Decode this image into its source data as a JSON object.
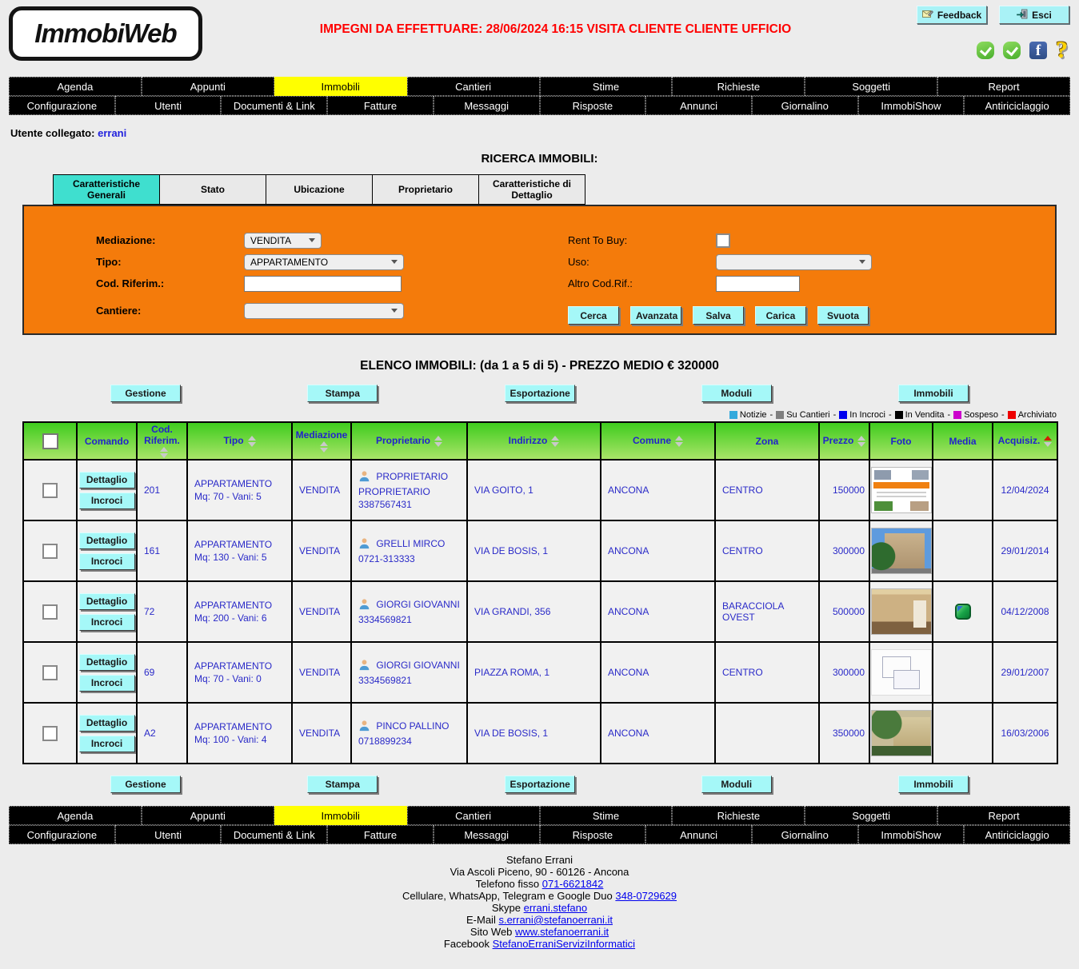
{
  "header": {
    "logo": "ImmobiWeb",
    "alert": "IMPEGNI DA EFFETTUARE: 28/06/2024 16:15 VISITA CLIENTE CLIENTE UFFICIO",
    "feedback_label": "Feedback",
    "esci_label": "Esci",
    "alert_color": "#FF0000",
    "button_color": "#A9F2F6"
  },
  "nav": {
    "row1": [
      "Agenda",
      "Appunti",
      "Immobili",
      "Cantieri",
      "Stime",
      "Richieste",
      "Soggetti",
      "Report"
    ],
    "row2": [
      "Configurazione",
      "Utenti",
      "Documenti & Link",
      "Fatture",
      "Messaggi",
      "Risposte",
      "Annunci",
      "Giornalino",
      "ImmobiShow",
      "Antiriciclaggio"
    ],
    "active": "Immobili",
    "active_color": "#FFFF00"
  },
  "user_bar": {
    "label": "Utente collegato:",
    "user": "errani"
  },
  "search": {
    "title": "RICERCA IMMOBILI:",
    "tabs": [
      "Caratteristiche Generali",
      "Stato",
      "Ubicazione",
      "Proprietario",
      "Caratteristiche di Dettaglio"
    ],
    "active_tab": "Caratteristiche Generali",
    "active_tab_color": "#3FDFCF",
    "panel_color": "#F47B0B",
    "fields_left": [
      {
        "label": "Mediazione:",
        "type": "select",
        "value": "VENDITA"
      },
      {
        "label": "Tipo:",
        "type": "select",
        "value": "APPARTAMENTO"
      },
      {
        "label": "Cod. Riferim.:",
        "type": "text",
        "value": ""
      },
      {
        "label": "Cantiere:",
        "type": "select",
        "value": ""
      }
    ],
    "fields_right": [
      {
        "label": "Rent To Buy:",
        "type": "checkbox",
        "checked": false
      },
      {
        "label": "Uso:",
        "type": "select",
        "value": ""
      },
      {
        "label": "Altro Cod.Rif.:",
        "type": "text",
        "value": ""
      }
    ],
    "buttons": [
      "Cerca",
      "Avanzata",
      "Salva",
      "Carica",
      "Svuota"
    ]
  },
  "list": {
    "title": "ELENCO IMMOBILI: (da 1 a 5 di 5)  -  PREZZO MEDIO € 320000",
    "action_buttons": [
      "Gestione",
      "Stampa",
      "Esportazione",
      "Moduli",
      "Immobili"
    ],
    "legend": [
      {
        "label": "Notizie",
        "color": "#33A9DC"
      },
      {
        "label": "Su Cantieri",
        "color": "#7F7F7F"
      },
      {
        "label": "In Incroci",
        "color": "#0000EE"
      },
      {
        "label": "In Vendita",
        "color": "#000000"
      },
      {
        "label": "Sospeso",
        "color": "#CC00CC"
      },
      {
        "label": "Archiviato",
        "color": "#EE0000"
      }
    ],
    "command_buttons": [
      "Dettaglio",
      "Incroci"
    ],
    "columns": [
      {
        "label": "",
        "checkbox": true
      },
      {
        "label": "Comando",
        "sort": "none"
      },
      {
        "label": "Cod. Riferim.",
        "sort": "both"
      },
      {
        "label": "Tipo",
        "sort": "both"
      },
      {
        "label": "Mediazione",
        "sort": "both"
      },
      {
        "label": "Proprietario",
        "sort": "both"
      },
      {
        "label": "Indirizzo",
        "sort": "both"
      },
      {
        "label": "Comune",
        "sort": "both"
      },
      {
        "label": "Zona",
        "sort": "none"
      },
      {
        "label": "Prezzo",
        "sort": "both"
      },
      {
        "label": "Foto",
        "sort": "none"
      },
      {
        "label": "Media",
        "sort": "none"
      },
      {
        "label": "Acquisiz.",
        "sort": "active"
      }
    ],
    "rows": [
      {
        "cod": "201",
        "tipo": "APPARTAMENTO",
        "dettagli": "Mq: 70 - Vani: 5",
        "mediazione": "VENDITA",
        "proprietario": "PROPRIETARIO PROPRIETARIO",
        "telefono": "3387567431",
        "indirizzo": "VIA GOITO, 1",
        "comune": "ANCONA",
        "zona": "CENTRO",
        "prezzo": "150000",
        "foto": "flyer",
        "media": false,
        "acquisiz": "12/04/2024"
      },
      {
        "cod": "161",
        "tipo": "APPARTAMENTO",
        "dettagli": "Mq: 130 - Vani: 5",
        "mediazione": "VENDITA",
        "proprietario": "GRELLI MIRCO",
        "telefono": "0721-313333",
        "indirizzo": "VIA DE BOSIS, 1",
        "comune": "ANCONA",
        "zona": "CENTRO",
        "prezzo": "300000",
        "foto": "building",
        "media": false,
        "acquisiz": "29/01/2014"
      },
      {
        "cod": "72",
        "tipo": "APPARTAMENTO",
        "dettagli": "Mq: 200 - Vani: 6",
        "mediazione": "VENDITA",
        "proprietario": "GIORGI GIOVANNI",
        "telefono": "3334569821",
        "indirizzo": "VIA GRANDI, 356",
        "comune": "ANCONA",
        "zona": "BARACCIOLA OVEST",
        "prezzo": "500000",
        "foto": "interior",
        "media": true,
        "acquisiz": "04/12/2008"
      },
      {
        "cod": "69",
        "tipo": "APPARTAMENTO",
        "dettagli": "Mq: 70 - Vani: 0",
        "mediazione": "VENDITA",
        "proprietario": "GIORGI GIOVANNI",
        "telefono": "3334569821",
        "indirizzo": "PIAZZA ROMA, 1",
        "comune": "ANCONA",
        "zona": "CENTRO",
        "prezzo": "300000",
        "foto": "floorplan",
        "media": false,
        "acquisiz": "29/01/2007"
      },
      {
        "cod": "A2",
        "tipo": "APPARTAMENTO",
        "dettagli": "Mq: 100 - Vani: 4",
        "mediazione": "VENDITA",
        "proprietario": "PINCO PALLINO",
        "telefono": "0718899234",
        "indirizzo": "VIA DE BOSIS, 1",
        "comune": "ANCONA",
        "zona": "",
        "prezzo": "350000",
        "foto": "villa",
        "media": false,
        "acquisiz": "16/03/2006"
      }
    ]
  },
  "footer": {
    "lines": [
      {
        "text": "Stefano Errani",
        "link": ""
      },
      {
        "text": "Via Ascoli Piceno, 90 - 60126 - Ancona",
        "link": ""
      },
      {
        "text": "Telefono fisso ",
        "link": "071-6621842"
      },
      {
        "text": "Cellulare, WhatsApp, Telegram e Google Duo ",
        "link": "348-0729629"
      },
      {
        "text": "Skype ",
        "link": "errani.stefano"
      },
      {
        "text": "E-Mail ",
        "link": "s.errani@stefanoerrani.it"
      },
      {
        "text": "Sito Web ",
        "link": "www.stefanoerrani.it"
      },
      {
        "text": "Facebook ",
        "link": "StefanoErraniServiziInformatici"
      }
    ]
  }
}
